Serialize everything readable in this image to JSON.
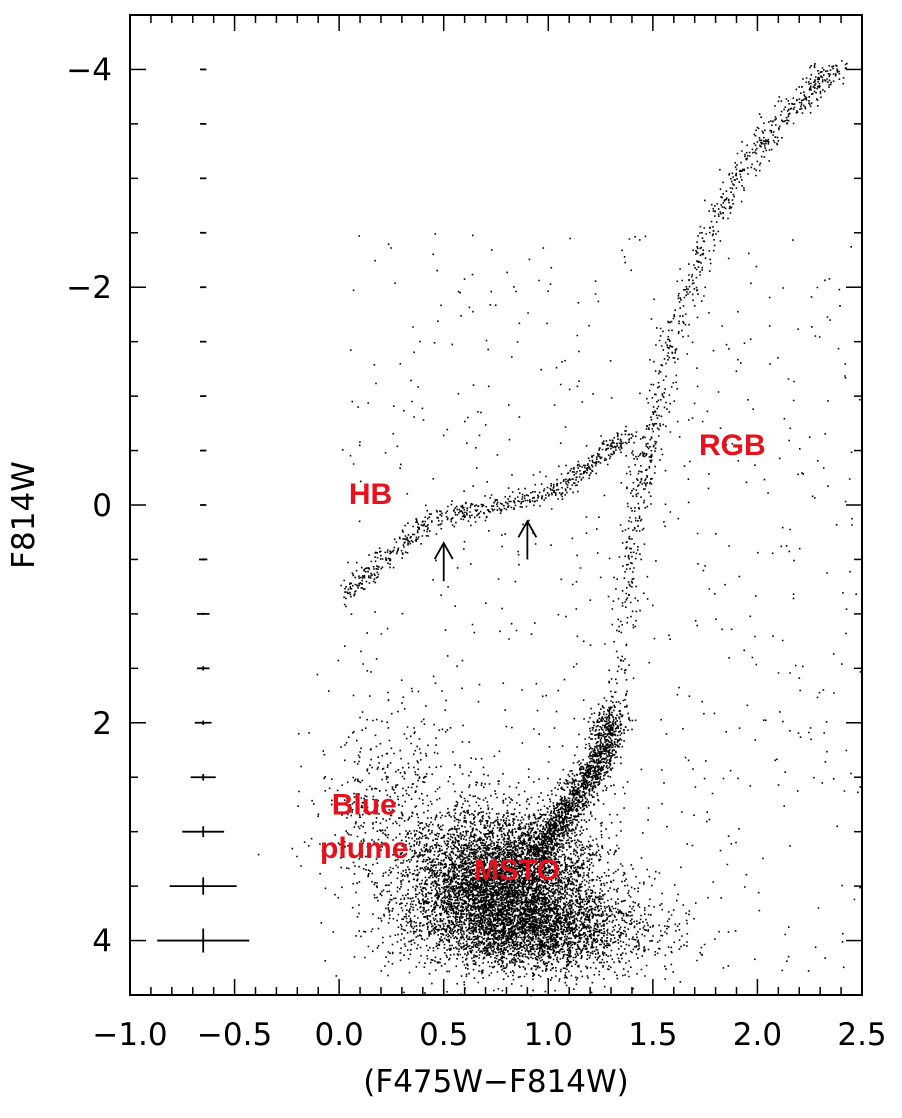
{
  "chart_data": {
    "type": "scatter",
    "title": "",
    "xlabel": "(F475W−F814W)",
    "ylabel": "F814W",
    "xlim": [
      -1.0,
      2.5
    ],
    "ylim": [
      4.5,
      -4.5
    ],
    "y_inverted": true,
    "grid": false,
    "legend": "none",
    "x_ticks": [
      -1.0,
      -0.5,
      0.0,
      0.5,
      1.0,
      1.5,
      2.0,
      2.5
    ],
    "x_tick_labels": [
      "−1.0",
      "−0.5",
      "0.0",
      "0.5",
      "1.0",
      "1.5",
      "2.0",
      "2.5"
    ],
    "y_ticks": [
      -4,
      -2,
      0,
      2,
      4
    ],
    "y_tick_labels": [
      "−4",
      "−2",
      "0",
      "2",
      "4"
    ],
    "point_color": "#000000",
    "annotation_color": "#e8101c",
    "annotations": [
      {
        "text": "RGB",
        "x": 1.88,
        "y": -0.55
      },
      {
        "text": "HB",
        "x": 0.15,
        "y": -0.1
      },
      {
        "text": "MSTO",
        "x": 0.85,
        "y": 3.35
      },
      {
        "text": "Blue",
        "x": 0.12,
        "y": 2.75
      },
      {
        "text": "plume",
        "x": 0.12,
        "y": 3.15
      }
    ],
    "arrows": [
      {
        "x": 0.5,
        "y_tail": 0.7,
        "y_head": 0.35
      },
      {
        "x": 0.9,
        "y_tail": 0.5,
        "y_head": 0.15
      }
    ],
    "error_bars": {
      "x": -0.65,
      "rows": [
        {
          "mag": -4.0,
          "color_err": 0.0,
          "mag_err": 0.0
        },
        {
          "mag": -3.5,
          "color_err": 0.0,
          "mag_err": 0.0
        },
        {
          "mag": -3.0,
          "color_err": 0.0,
          "mag_err": 0.0
        },
        {
          "mag": -2.5,
          "color_err": 0.0,
          "mag_err": 0.0
        },
        {
          "mag": -2.0,
          "color_err": 0.0,
          "mag_err": 0.0
        },
        {
          "mag": -1.5,
          "color_err": 0.01,
          "mag_err": 0.0
        },
        {
          "mag": -1.0,
          "color_err": 0.01,
          "mag_err": 0.0
        },
        {
          "mag": -0.5,
          "color_err": 0.01,
          "mag_err": 0.0
        },
        {
          "mag": 0.0,
          "color_err": 0.01,
          "mag_err": 0.0
        },
        {
          "mag": 0.5,
          "color_err": 0.02,
          "mag_err": 0.01
        },
        {
          "mag": 1.0,
          "color_err": 0.03,
          "mag_err": 0.01
        },
        {
          "mag": 1.5,
          "color_err": 0.03,
          "mag_err": 0.02
        },
        {
          "mag": 2.0,
          "color_err": 0.04,
          "mag_err": 0.02
        },
        {
          "mag": 2.5,
          "color_err": 0.06,
          "mag_err": 0.03
        },
        {
          "mag": 3.0,
          "color_err": 0.1,
          "mag_err": 0.05
        },
        {
          "mag": 3.5,
          "color_err": 0.16,
          "mag_err": 0.08
        },
        {
          "mag": 4.0,
          "color_err": 0.22,
          "mag_err": 0.11
        }
      ]
    },
    "features": [
      {
        "name": "RGB",
        "kind": "ridge",
        "spread": 0.035,
        "n": 900,
        "points": [
          [
            1.3,
            2.6
          ],
          [
            1.36,
            1.0
          ],
          [
            1.42,
            0.0
          ],
          [
            1.48,
            -0.6
          ],
          [
            1.58,
            -1.5
          ],
          [
            1.72,
            -2.3
          ],
          [
            1.9,
            -3.0
          ],
          [
            2.08,
            -3.5
          ],
          [
            2.25,
            -3.8
          ],
          [
            2.38,
            -4.05
          ]
        ]
      },
      {
        "name": "HB",
        "kind": "ridge",
        "spread": 0.03,
        "n": 650,
        "points": [
          [
            0.02,
            0.85
          ],
          [
            0.15,
            0.6
          ],
          [
            0.3,
            0.35
          ],
          [
            0.45,
            0.12
          ],
          [
            0.6,
            0.05
          ],
          [
            0.8,
            -0.02
          ],
          [
            1.0,
            -0.1
          ],
          [
            1.15,
            -0.3
          ],
          [
            1.28,
            -0.5
          ],
          [
            1.38,
            -0.65
          ]
        ]
      },
      {
        "name": "SGB",
        "kind": "ridge",
        "spread": 0.04,
        "n": 1400,
        "points": [
          [
            0.95,
            3.2
          ],
          [
            1.05,
            2.9
          ],
          [
            1.15,
            2.6
          ],
          [
            1.25,
            2.3
          ],
          [
            1.3,
            1.9
          ]
        ]
      },
      {
        "name": "MSTO",
        "kind": "blob",
        "cx": 0.78,
        "cy": 3.45,
        "sx": 0.22,
        "sy": 0.32,
        "n": 5500
      },
      {
        "name": "MS",
        "kind": "blob",
        "cx": 0.95,
        "cy": 3.9,
        "sx": 0.28,
        "sy": 0.2,
        "n": 2500
      },
      {
        "name": "Blue plume",
        "kind": "blob",
        "cx": 0.25,
        "cy": 2.7,
        "sx": 0.18,
        "sy": 0.5,
        "n": 450
      },
      {
        "name": "field",
        "kind": "uniform",
        "x0": 0.0,
        "x1": 2.5,
        "y0": -2.5,
        "y1": 4.3,
        "n": 700
      }
    ]
  }
}
